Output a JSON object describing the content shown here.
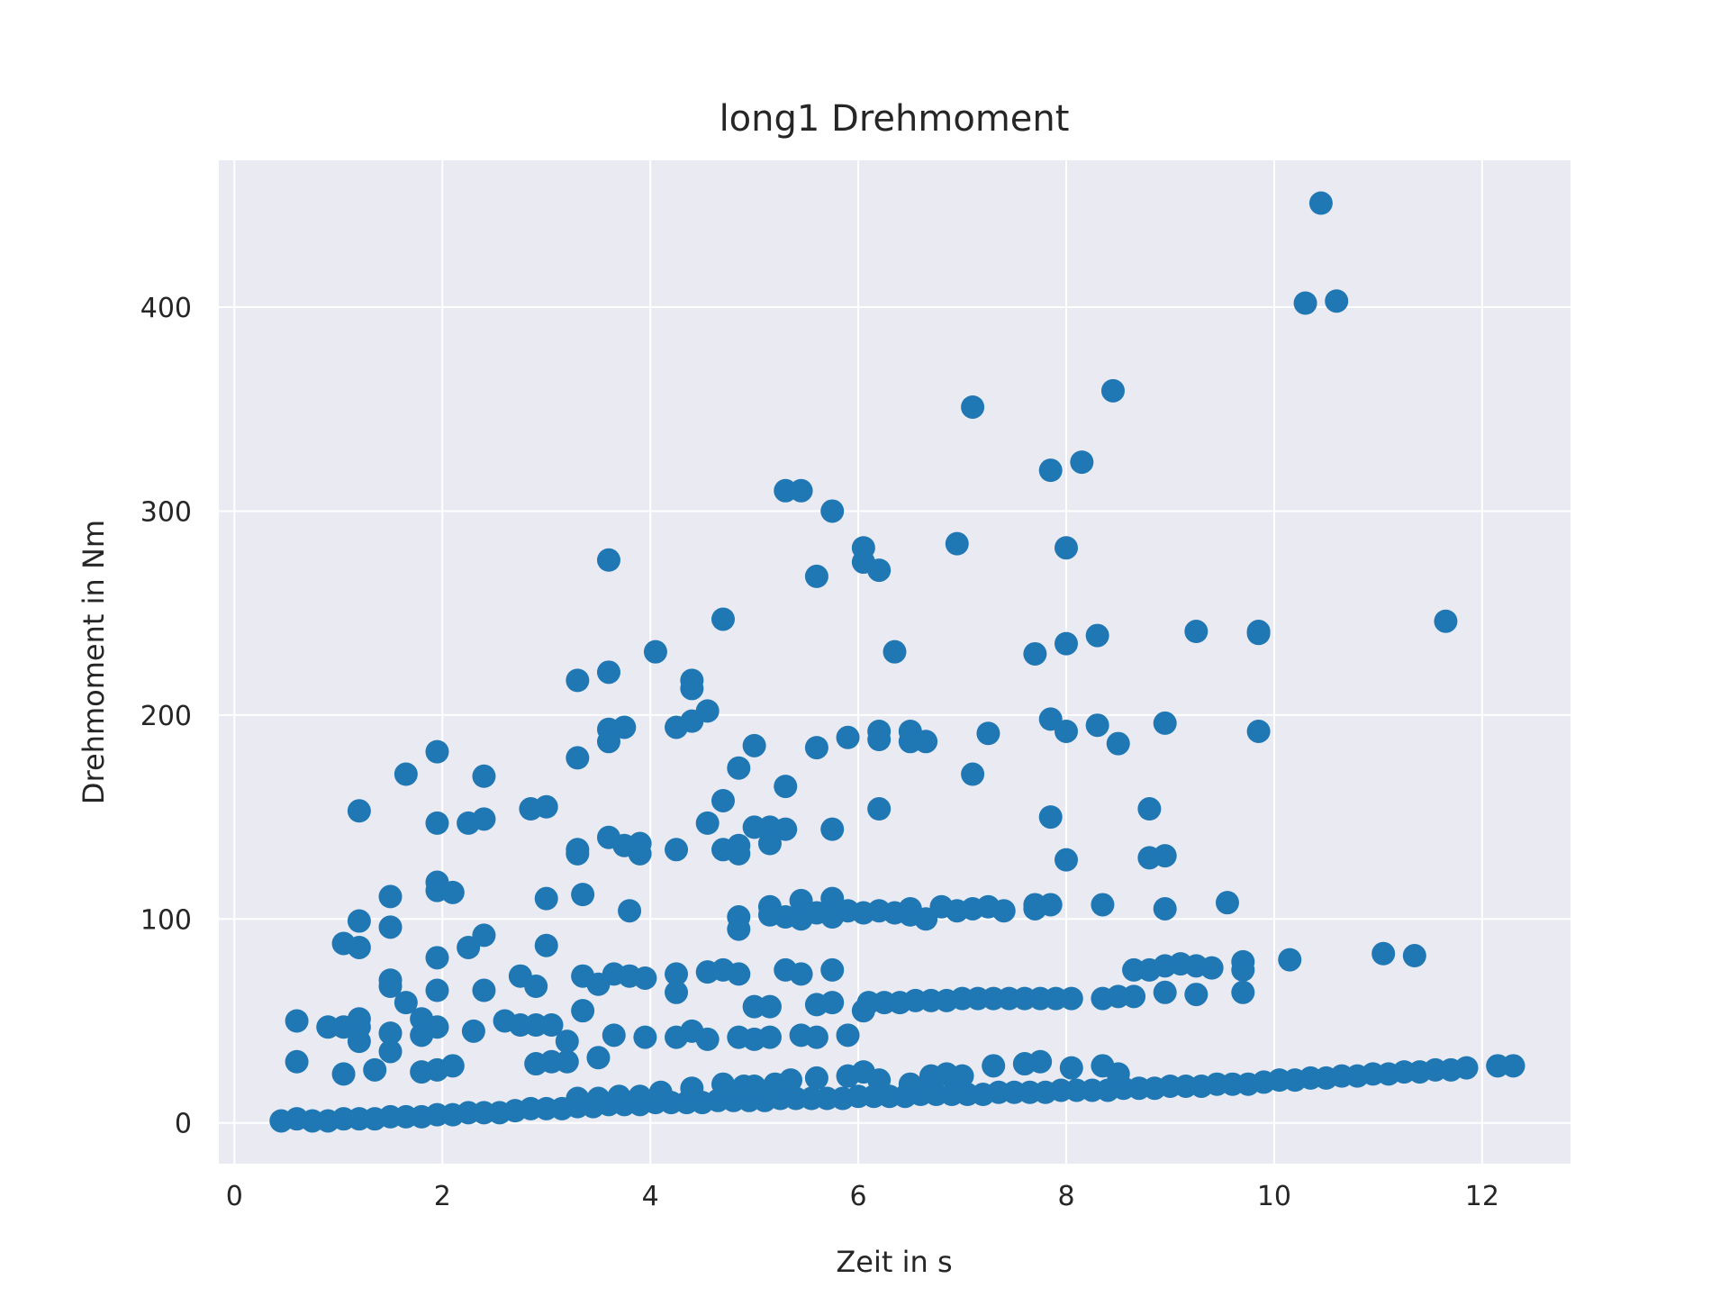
{
  "chart_data": {
    "type": "scatter",
    "title": "long1 Drehmoment",
    "xlabel": "Zeit in s",
    "ylabel": "Drehmoment in Nm",
    "xlim": [
      -0.15,
      12.85
    ],
    "ylim": [
      -20,
      472
    ],
    "xticks": [
      0,
      2,
      4,
      6,
      8,
      10,
      12
    ],
    "yticks": [
      0,
      100,
      200,
      300,
      400
    ],
    "grid": true,
    "background": "#EAEAF2",
    "grid_color": "#FFFFFF",
    "marker_color": "#1F77B4",
    "points": [
      [
        0.45,
        1
      ],
      [
        0.6,
        2
      ],
      [
        0.75,
        1
      ],
      [
        0.9,
        1
      ],
      [
        1.05,
        2
      ],
      [
        1.2,
        2
      ],
      [
        1.35,
        2
      ],
      [
        1.5,
        3
      ],
      [
        1.65,
        3
      ],
      [
        1.8,
        3
      ],
      [
        1.95,
        4
      ],
      [
        2.1,
        4
      ],
      [
        2.25,
        5
      ],
      [
        2.4,
        5
      ],
      [
        2.55,
        5
      ],
      [
        2.7,
        6
      ],
      [
        2.85,
        7
      ],
      [
        3.0,
        7
      ],
      [
        3.15,
        7
      ],
      [
        3.3,
        8
      ],
      [
        3.45,
        8
      ],
      [
        3.6,
        9
      ],
      [
        3.75,
        9
      ],
      [
        3.9,
        9
      ],
      [
        4.05,
        10
      ],
      [
        4.2,
        10
      ],
      [
        4.35,
        10
      ],
      [
        4.5,
        10
      ],
      [
        4.65,
        11
      ],
      [
        4.8,
        11
      ],
      [
        4.95,
        11
      ],
      [
        5.1,
        11
      ],
      [
        5.25,
        12
      ],
      [
        5.4,
        12
      ],
      [
        5.55,
        12
      ],
      [
        5.7,
        12
      ],
      [
        5.85,
        12
      ],
      [
        6.0,
        13
      ],
      [
        6.15,
        13
      ],
      [
        6.3,
        13
      ],
      [
        6.45,
        13
      ],
      [
        6.6,
        14
      ],
      [
        6.75,
        14
      ],
      [
        6.9,
        14
      ],
      [
        7.05,
        14
      ],
      [
        7.2,
        14
      ],
      [
        7.35,
        15
      ],
      [
        7.5,
        15
      ],
      [
        7.65,
        15
      ],
      [
        7.8,
        15
      ],
      [
        7.95,
        16
      ],
      [
        8.1,
        16
      ],
      [
        8.25,
        16
      ],
      [
        8.4,
        16
      ],
      [
        8.55,
        17
      ],
      [
        8.7,
        17
      ],
      [
        8.85,
        17
      ],
      [
        9.0,
        18
      ],
      [
        9.15,
        18
      ],
      [
        9.3,
        18
      ],
      [
        9.45,
        19
      ],
      [
        9.6,
        19
      ],
      [
        9.75,
        19
      ],
      [
        9.9,
        20
      ],
      [
        10.05,
        21
      ],
      [
        10.2,
        21
      ],
      [
        10.35,
        22
      ],
      [
        10.5,
        22
      ],
      [
        10.65,
        23
      ],
      [
        10.8,
        23
      ],
      [
        10.95,
        24
      ],
      [
        11.1,
        24
      ],
      [
        11.25,
        25
      ],
      [
        11.4,
        25
      ],
      [
        11.55,
        26
      ],
      [
        11.7,
        26
      ],
      [
        11.85,
        27
      ],
      [
        12.15,
        28
      ],
      [
        12.3,
        28
      ],
      [
        3.3,
        12
      ],
      [
        3.5,
        12
      ],
      [
        3.7,
        13
      ],
      [
        3.9,
        13
      ],
      [
        4.1,
        15
      ],
      [
        4.4,
        17
      ],
      [
        4.7,
        19
      ],
      [
        4.9,
        18
      ],
      [
        5.0,
        18
      ],
      [
        5.2,
        19
      ],
      [
        5.35,
        21
      ],
      [
        5.6,
        22
      ],
      [
        5.9,
        23
      ],
      [
        6.05,
        25
      ],
      [
        6.2,
        21
      ],
      [
        6.5,
        19
      ],
      [
        6.7,
        23
      ],
      [
        6.85,
        24
      ],
      [
        7.0,
        23
      ],
      [
        7.3,
        28
      ],
      [
        7.6,
        29
      ],
      [
        7.75,
        30
      ],
      [
        8.05,
        27
      ],
      [
        8.35,
        28
      ],
      [
        8.5,
        24
      ],
      [
        0.6,
        50
      ],
      [
        0.6,
        30
      ],
      [
        0.9,
        47
      ],
      [
        1.05,
        47
      ],
      [
        1.05,
        24
      ],
      [
        1.2,
        51
      ],
      [
        1.2,
        47
      ],
      [
        1.2,
        40
      ],
      [
        1.35,
        26
      ],
      [
        1.5,
        44
      ],
      [
        1.5,
        35
      ],
      [
        1.65,
        59
      ],
      [
        1.8,
        51
      ],
      [
        1.8,
        43
      ],
      [
        1.8,
        25
      ],
      [
        1.95,
        47
      ],
      [
        1.95,
        26
      ],
      [
        2.1,
        28
      ],
      [
        2.3,
        45
      ],
      [
        2.6,
        50
      ],
      [
        2.75,
        48
      ],
      [
        2.9,
        48
      ],
      [
        2.9,
        29
      ],
      [
        3.05,
        48
      ],
      [
        3.05,
        30
      ],
      [
        3.2,
        40
      ],
      [
        3.2,
        30
      ],
      [
        3.35,
        55
      ],
      [
        3.5,
        32
      ],
      [
        3.65,
        43
      ],
      [
        3.95,
        42
      ],
      [
        4.25,
        42
      ],
      [
        4.4,
        45
      ],
      [
        4.55,
        41
      ],
      [
        4.85,
        42
      ],
      [
        5.0,
        41
      ],
      [
        5.15,
        42
      ],
      [
        5.45,
        43
      ],
      [
        5.6,
        42
      ],
      [
        5.9,
        43
      ],
      [
        5.0,
        57
      ],
      [
        5.15,
        57
      ],
      [
        5.6,
        58
      ],
      [
        5.75,
        59
      ],
      [
        6.05,
        55
      ],
      [
        6.1,
        59
      ],
      [
        6.25,
        59
      ],
      [
        6.4,
        59
      ],
      [
        6.55,
        60
      ],
      [
        6.7,
        60
      ],
      [
        6.85,
        60
      ],
      [
        7.0,
        61
      ],
      [
        7.15,
        61
      ],
      [
        7.3,
        61
      ],
      [
        7.45,
        61
      ],
      [
        7.6,
        61
      ],
      [
        7.75,
        61
      ],
      [
        7.9,
        61
      ],
      [
        8.05,
        61
      ],
      [
        8.35,
        61
      ],
      [
        8.5,
        62
      ],
      [
        8.65,
        62
      ],
      [
        8.95,
        64
      ],
      [
        9.25,
        63
      ],
      [
        9.7,
        64
      ],
      [
        1.5,
        70
      ],
      [
        1.5,
        67
      ],
      [
        1.95,
        65
      ],
      [
        2.4,
        65
      ],
      [
        2.75,
        72
      ],
      [
        2.9,
        67
      ],
      [
        3.35,
        72
      ],
      [
        3.5,
        68
      ],
      [
        3.65,
        73
      ],
      [
        3.8,
        72
      ],
      [
        3.95,
        71
      ],
      [
        4.25,
        73
      ],
      [
        4.25,
        64
      ],
      [
        4.55,
        74
      ],
      [
        4.7,
        75
      ],
      [
        4.85,
        73
      ],
      [
        5.3,
        75
      ],
      [
        5.45,
        73
      ],
      [
        5.75,
        75
      ],
      [
        8.65,
        75
      ],
      [
        8.8,
        75
      ],
      [
        8.95,
        77
      ],
      [
        9.1,
        78
      ],
      [
        9.25,
        77
      ],
      [
        9.4,
        76
      ],
      [
        9.7,
        79
      ],
      [
        9.7,
        75
      ],
      [
        10.15,
        80
      ],
      [
        11.05,
        83
      ],
      [
        11.35,
        82
      ],
      [
        1.05,
        88
      ],
      [
        1.2,
        99
      ],
      [
        1.2,
        86
      ],
      [
        1.5,
        111
      ],
      [
        1.5,
        96
      ],
      [
        1.95,
        118
      ],
      [
        1.95,
        114
      ],
      [
        1.95,
        81
      ],
      [
        2.1,
        113
      ],
      [
        2.25,
        86
      ],
      [
        2.4,
        92
      ],
      [
        3.0,
        110
      ],
      [
        3.0,
        87
      ],
      [
        3.35,
        112
      ],
      [
        3.8,
        104
      ],
      [
        4.85,
        101
      ],
      [
        4.85,
        95
      ],
      [
        5.15,
        106
      ],
      [
        5.15,
        102
      ],
      [
        5.3,
        101
      ],
      [
        5.45,
        109
      ],
      [
        5.45,
        100
      ],
      [
        5.6,
        103
      ],
      [
        5.75,
        110
      ],
      [
        5.75,
        101
      ],
      [
        5.9,
        104
      ],
      [
        6.05,
        103
      ],
      [
        6.2,
        104
      ],
      [
        6.35,
        103
      ],
      [
        6.5,
        105
      ],
      [
        6.5,
        102
      ],
      [
        6.65,
        100
      ],
      [
        6.8,
        106
      ],
      [
        6.95,
        104
      ],
      [
        7.1,
        105
      ],
      [
        7.25,
        106
      ],
      [
        7.4,
        104
      ],
      [
        7.7,
        107
      ],
      [
        7.7,
        105
      ],
      [
        7.85,
        107
      ],
      [
        8.35,
        107
      ],
      [
        8.95,
        105
      ],
      [
        9.55,
        108
      ],
      [
        1.2,
        153
      ],
      [
        1.65,
        171
      ],
      [
        1.95,
        182
      ],
      [
        1.95,
        147
      ],
      [
        2.25,
        147
      ],
      [
        2.4,
        170
      ],
      [
        2.4,
        149
      ],
      [
        2.85,
        154
      ],
      [
        3.0,
        155
      ],
      [
        3.3,
        134
      ],
      [
        3.3,
        132
      ],
      [
        3.3,
        179
      ],
      [
        3.6,
        193
      ],
      [
        3.6,
        187
      ],
      [
        3.6,
        140
      ],
      [
        3.75,
        194
      ],
      [
        3.75,
        136
      ],
      [
        3.9,
        137
      ],
      [
        3.9,
        132
      ],
      [
        4.25,
        194
      ],
      [
        4.25,
        134
      ],
      [
        4.4,
        197
      ],
      [
        4.55,
        202
      ],
      [
        4.55,
        147
      ],
      [
        4.7,
        158
      ],
      [
        4.7,
        134
      ],
      [
        4.85,
        174
      ],
      [
        4.85,
        136
      ],
      [
        4.85,
        132
      ],
      [
        5.0,
        185
      ],
      [
        5.0,
        145
      ],
      [
        5.15,
        145
      ],
      [
        5.15,
        137
      ],
      [
        5.3,
        165
      ],
      [
        5.3,
        144
      ],
      [
        5.6,
        184
      ],
      [
        5.75,
        144
      ],
      [
        5.9,
        189
      ],
      [
        6.2,
        192
      ],
      [
        6.2,
        188
      ],
      [
        6.2,
        154
      ],
      [
        6.5,
        192
      ],
      [
        6.5,
        187
      ],
      [
        6.65,
        187
      ],
      [
        7.1,
        171
      ],
      [
        7.25,
        191
      ],
      [
        7.85,
        198
      ],
      [
        7.85,
        150
      ],
      [
        8.0,
        192
      ],
      [
        8.0,
        129
      ],
      [
        8.3,
        195
      ],
      [
        8.5,
        186
      ],
      [
        8.8,
        154
      ],
      [
        8.8,
        130
      ],
      [
        8.95,
        196
      ],
      [
        8.95,
        131
      ],
      [
        9.85,
        192
      ],
      [
        3.3,
        217
      ],
      [
        3.6,
        276
      ],
      [
        3.6,
        221
      ],
      [
        4.05,
        231
      ],
      [
        4.4,
        217
      ],
      [
        4.4,
        213
      ],
      [
        4.7,
        247
      ],
      [
        5.3,
        310
      ],
      [
        5.45,
        310
      ],
      [
        5.6,
        268
      ],
      [
        5.75,
        300
      ],
      [
        6.05,
        282
      ],
      [
        6.05,
        275
      ],
      [
        6.2,
        271
      ],
      [
        6.35,
        231
      ],
      [
        6.95,
        284
      ],
      [
        7.1,
        351
      ],
      [
        7.7,
        230
      ],
      [
        7.85,
        320
      ],
      [
        8.0,
        282
      ],
      [
        8.0,
        235
      ],
      [
        8.15,
        324
      ],
      [
        8.3,
        239
      ],
      [
        8.45,
        359
      ],
      [
        9.25,
        241
      ],
      [
        9.85,
        241
      ],
      [
        9.85,
        240
      ],
      [
        10.3,
        402
      ],
      [
        10.45,
        451
      ],
      [
        10.6,
        403
      ],
      [
        11.65,
        246
      ]
    ]
  }
}
